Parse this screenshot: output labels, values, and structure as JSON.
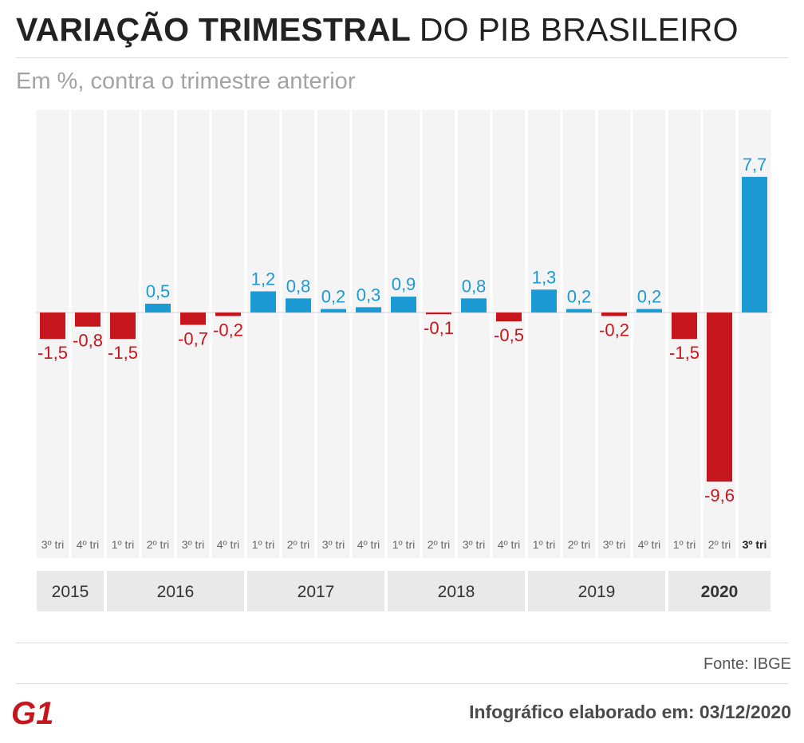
{
  "header": {
    "title_bold": "VARIAÇÃO TRIMESTRAL",
    "title_light": "DO PIB BRASILEIRO",
    "subtitle": "Em %, contra o trimestre anterior"
  },
  "colors": {
    "positive": "#1b9ad4",
    "negative": "#c4161c",
    "column_bg": "#f4f4f4",
    "year_bg": "#e9e9e9"
  },
  "chart_data": {
    "type": "bar",
    "title": "VARIAÇÃO TRIMESTRAL DO PIB BRASILEIRO",
    "subtitle": "Em %, contra o trimestre anterior",
    "ylabel": "%",
    "ylim": [
      -10.5,
      10.0
    ],
    "categories": [
      "3º tri",
      "4º tri",
      "1º tri",
      "2º tri",
      "3º tri",
      "4º tri",
      "1º tri",
      "2º tri",
      "3º tri",
      "4º tri",
      "1º tri",
      "2º tri",
      "3º tri",
      "4º tri",
      "1º tri",
      "2º tri",
      "3º tri",
      "4º tri",
      "1º tri",
      "2º tri",
      "3º tri"
    ],
    "values": [
      -1.5,
      -0.8,
      -1.5,
      0.5,
      -0.7,
      -0.2,
      1.2,
      0.8,
      0.2,
      0.3,
      0.9,
      -0.1,
      0.8,
      -0.5,
      1.3,
      0.2,
      -0.2,
      0.2,
      -1.5,
      -9.6,
      7.7
    ],
    "labels": [
      "-1,5",
      "-0,8",
      "-1,5",
      "0,5",
      "-0,7",
      "-0,2",
      "1,2",
      "0,8",
      "0,2",
      "0,3",
      "0,9",
      "-0,1",
      "0,8",
      "-0,5",
      "1,3",
      "0,2",
      "-0,2",
      "0,2",
      "-1,5",
      "-9,6",
      "7,7"
    ],
    "highlight_index": 20,
    "years": [
      {
        "label": "2015",
        "quarters": 2,
        "bold": false
      },
      {
        "label": "2016",
        "quarters": 4,
        "bold": false
      },
      {
        "label": "2017",
        "quarters": 4,
        "bold": false
      },
      {
        "label": "2018",
        "quarters": 4,
        "bold": false
      },
      {
        "label": "2019",
        "quarters": 4,
        "bold": false
      },
      {
        "label": "2020",
        "quarters": 3,
        "bold": true
      }
    ]
  },
  "footer": {
    "source": "Fonte: IBGE",
    "note": "Infográfico elaborado em: 03/12/2020",
    "logo_text": "G1"
  }
}
